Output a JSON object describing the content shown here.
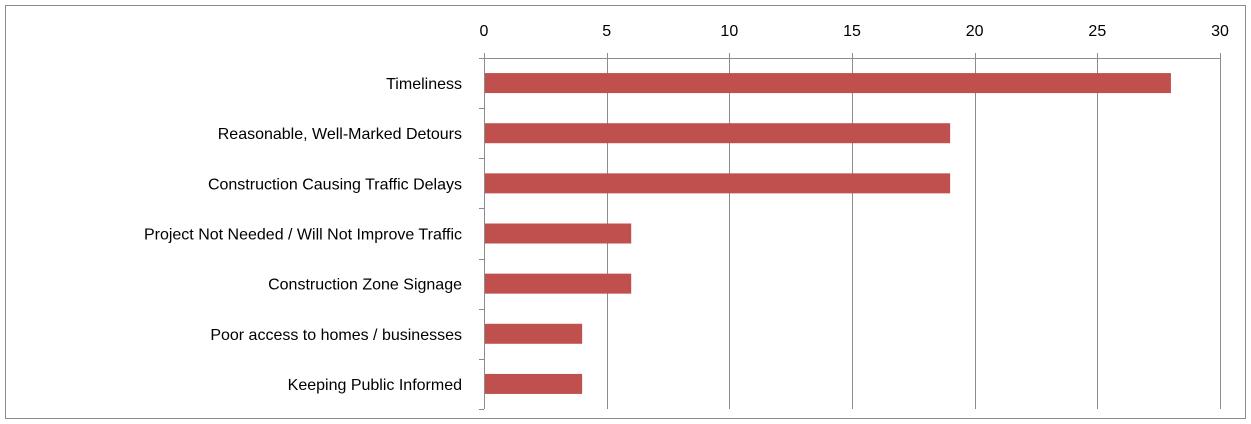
{
  "chart_data": {
    "type": "bar",
    "orientation": "horizontal",
    "categories": [
      "Timeliness",
      "Reasonable, Well-Marked Detours",
      "Construction Causing Traffic Delays",
      "Project Not Needed / Will Not Improve Traffic",
      "Construction Zone Signage",
      "Poor access to homes / businesses",
      "Keeping Public Informed"
    ],
    "values": [
      28,
      19,
      19,
      6,
      6,
      4,
      4
    ],
    "xlim": [
      0,
      30
    ],
    "xticks": [
      0,
      5,
      10,
      15,
      20,
      25,
      30
    ],
    "x_axis_position": "top",
    "grid": "vertical",
    "bar_color": "#c0504d",
    "gridline_color": "#8c8c8c"
  }
}
